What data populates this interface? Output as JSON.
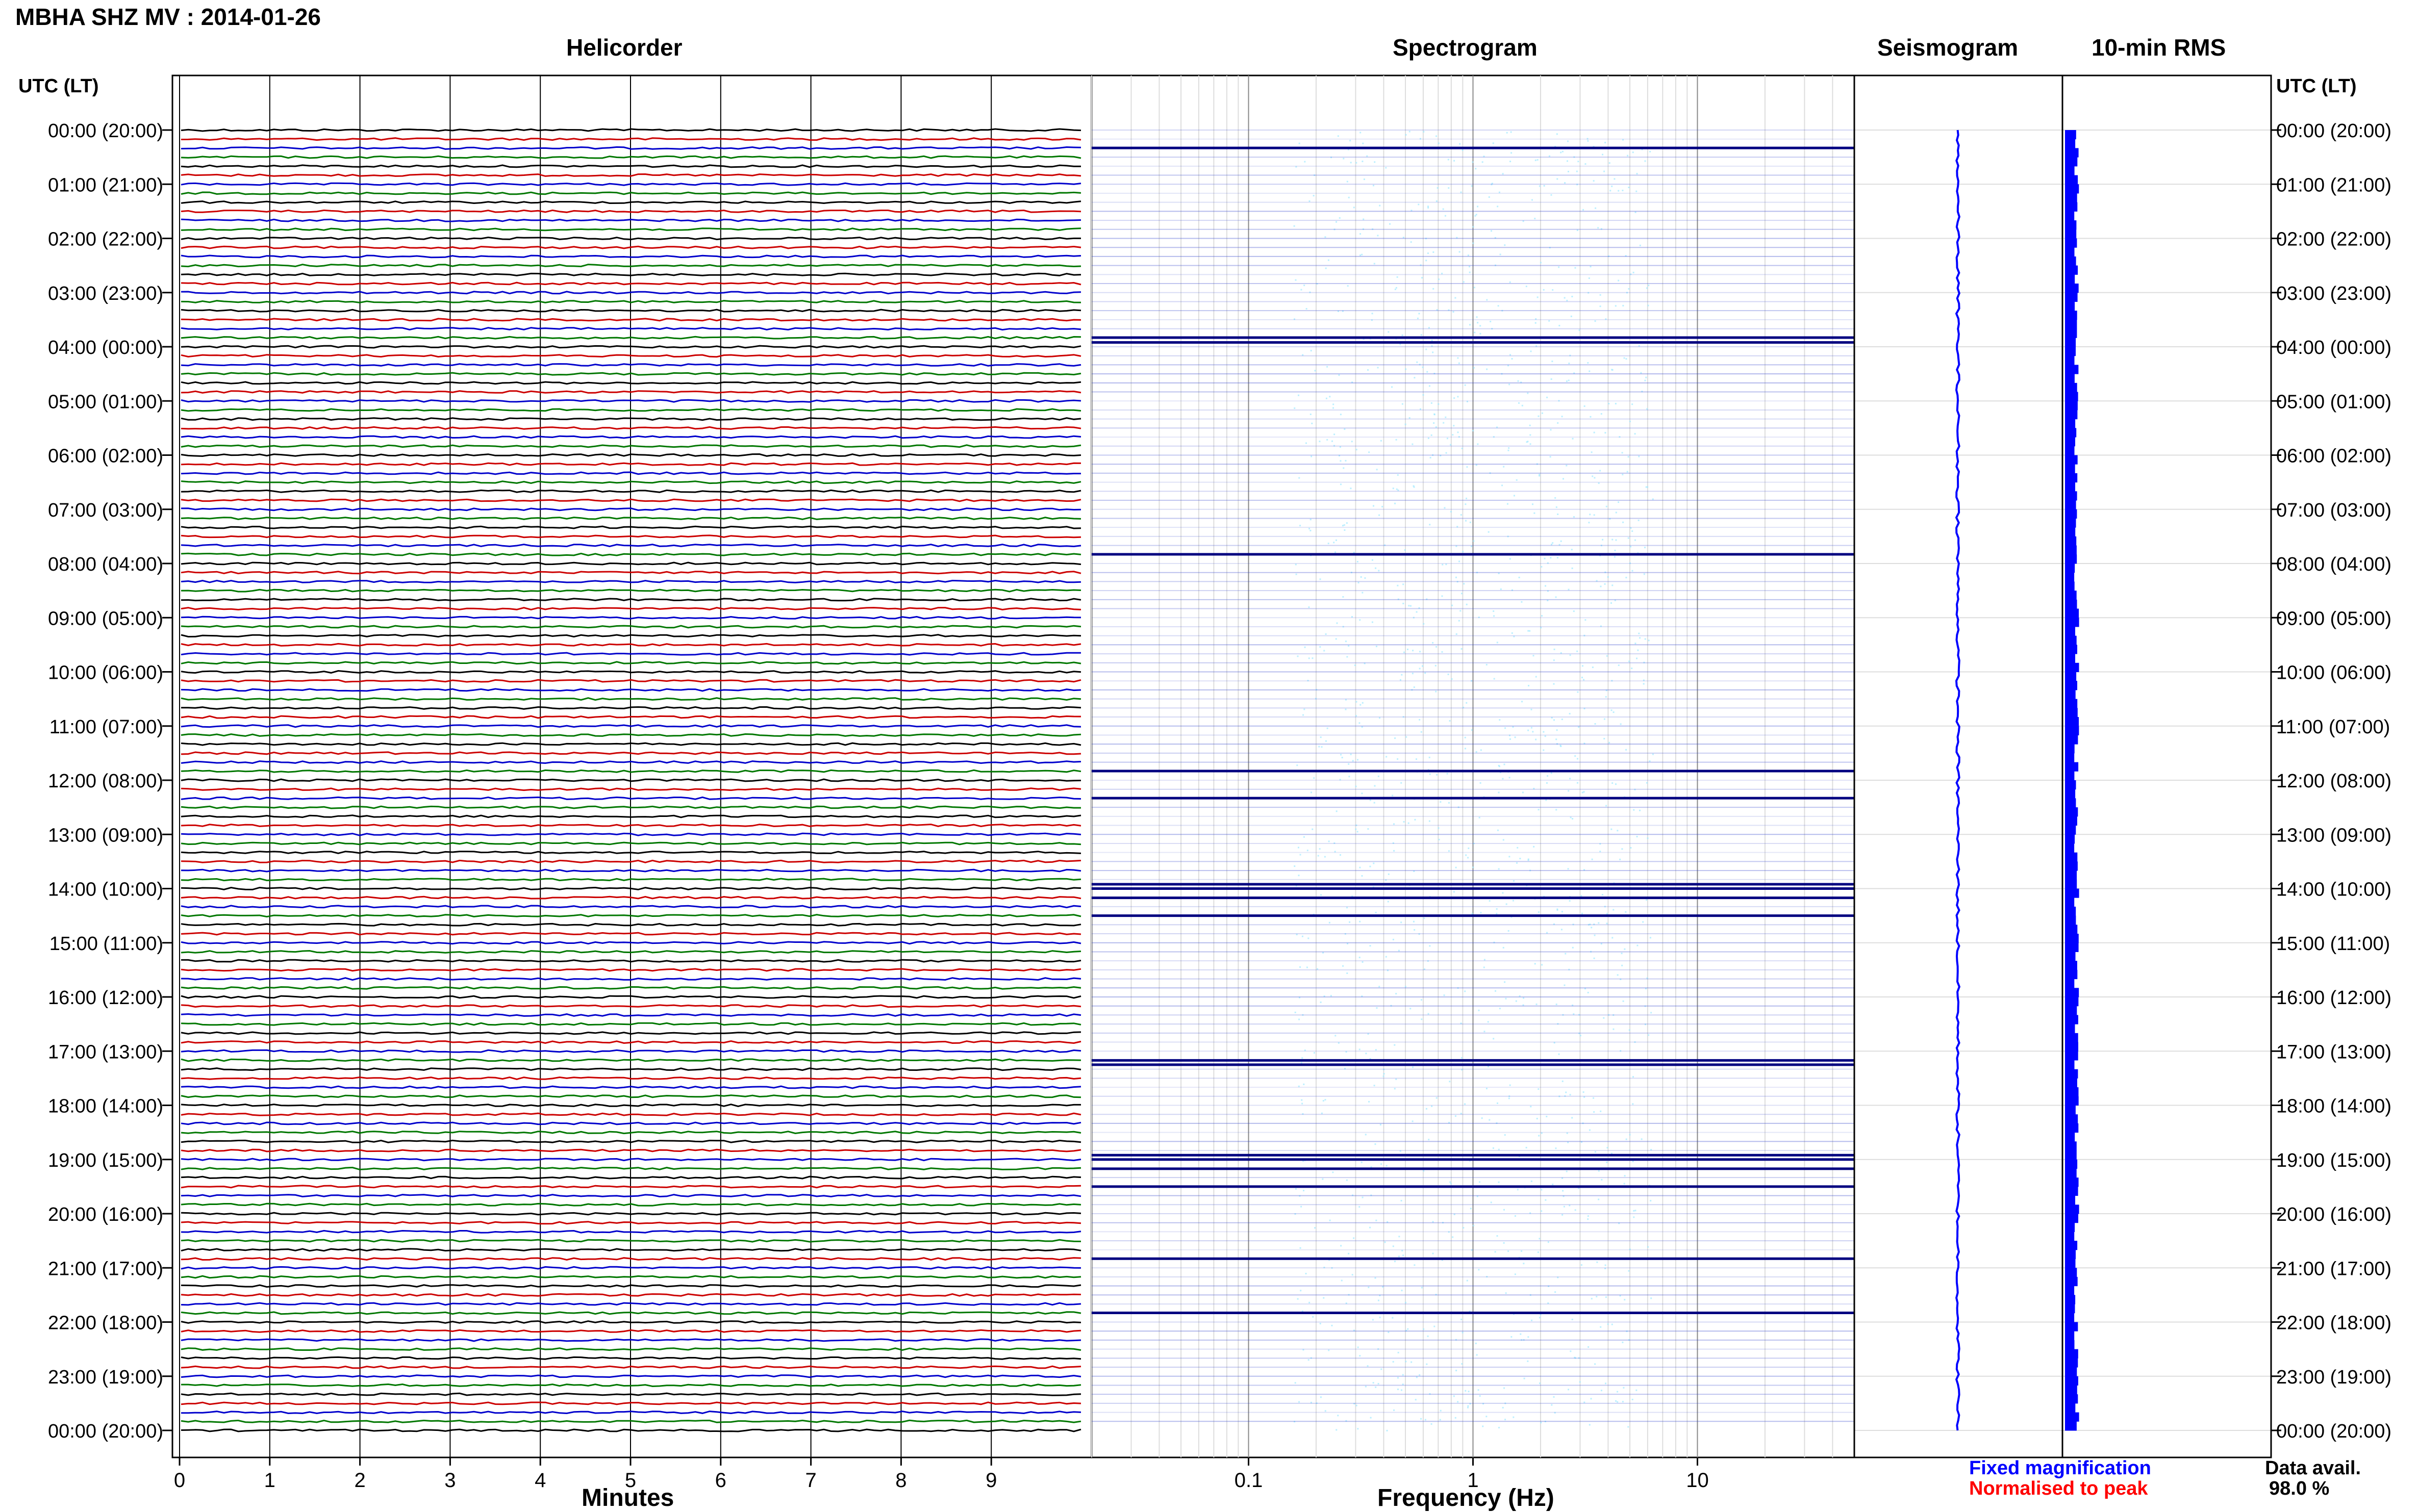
{
  "title": "MBHA SHZ MV : 2014-01-26",
  "time_axis_label": "UTC (LT)",
  "hour_labels": [
    "00:00 (20:00)",
    "01:00 (21:00)",
    "02:00 (22:00)",
    "03:00 (23:00)",
    "04:00 (00:00)",
    "05:00 (01:00)",
    "06:00 (02:00)",
    "07:00 (03:00)",
    "08:00 (04:00)",
    "09:00 (05:00)",
    "10:00 (06:00)",
    "11:00 (07:00)",
    "12:00 (08:00)",
    "13:00 (09:00)",
    "14:00 (10:00)",
    "15:00 (11:00)",
    "16:00 (12:00)",
    "17:00 (13:00)",
    "18:00 (14:00)",
    "19:00 (15:00)",
    "20:00 (16:00)",
    "21:00 (17:00)",
    "22:00 (18:00)",
    "23:00 (19:00)",
    "00:00 (20:00)"
  ],
  "panels": {
    "helicorder": "Helicorder",
    "spectrogram": "Spectrogram",
    "seismogram": "Seismogram",
    "rms": "10-min RMS"
  },
  "legend": {
    "fixed": "Fixed magnification",
    "normalised": "Normalised to peak",
    "fixed_color": "#0000ff",
    "normalised_color": "#ff0000"
  },
  "data_availability": {
    "label": "Data avail.",
    "value": "98.0 %"
  },
  "chart_data": [
    {
      "type": "line",
      "name": "Helicorder",
      "xlabel": "Minutes",
      "x_ticks": [
        0,
        1,
        2,
        3,
        4,
        5,
        6,
        7,
        8,
        9
      ],
      "xlim": [
        0,
        10
      ],
      "ylim_hours": [
        0,
        24
      ],
      "trace_interval_minutes": 10,
      "trace_colors": [
        "#000000",
        "#cc0000",
        "#0000cc",
        "#007700"
      ],
      "grid": true
    },
    {
      "type": "heatmap",
      "name": "Spectrogram",
      "xlabel": "Frequency (Hz)",
      "x_scale": "log",
      "x_ticks": [
        0.1,
        1,
        10
      ],
      "x_tick_labels": [
        "0.1",
        "1",
        "10"
      ],
      "xlim": [
        0.02,
        50
      ],
      "ylim_hours": [
        0,
        24
      ],
      "strong_rows_hours": [
        0.33,
        3.83,
        3.92,
        7.83,
        11.83,
        12.33,
        13.92,
        14.0,
        14.17,
        14.5,
        17.17,
        17.25,
        18.92,
        19.0,
        19.17,
        19.5,
        20.83,
        21.83
      ],
      "grid": true
    },
    {
      "type": "line",
      "name": "Seismogram",
      "ylim_hours": [
        0,
        24
      ],
      "color": "#0000ff"
    },
    {
      "type": "bar",
      "name": "10-min RMS",
      "ylim_hours": [
        0,
        24
      ],
      "color": "#0000ff"
    }
  ]
}
